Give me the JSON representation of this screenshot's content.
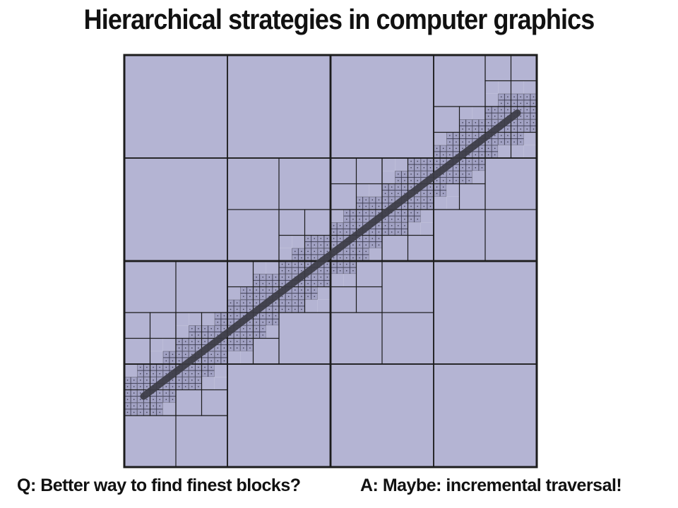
{
  "slide": {
    "title": "Hierarchical strategies in computer graphics",
    "question": "Q: Better way to find finest blocks?",
    "answer": "A: Maybe: incremental traversal!"
  },
  "colors": {
    "background_cell": "#e9e9ee",
    "refined_cell": "#b4b4d3",
    "fine_cell": "#a2a2c4",
    "fine_grid": "#3a3a4e",
    "grid_line": "#1c1c1c",
    "segment": "#3c3c46"
  },
  "quadtree": {
    "levels": 5,
    "segment_start": {
      "col": 1,
      "row": 26
    },
    "segment_end": {
      "col": 30,
      "row": 4
    }
  }
}
